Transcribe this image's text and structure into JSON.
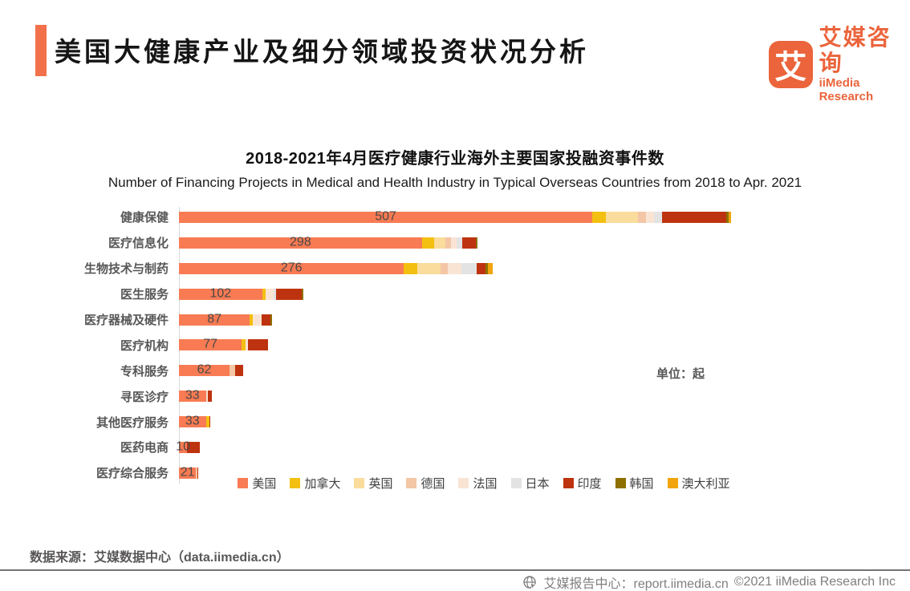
{
  "header": {
    "title": "美国大健康产业及细分领域投资状况分析",
    "logo_char": "艾",
    "brand_cn": "艾媒咨询",
    "brand_en": "iiMedia Research",
    "accent_color": "#F2714A",
    "brand_color": "#EB643B"
  },
  "chart_data": {
    "type": "bar",
    "orientation": "horizontal",
    "stacked": true,
    "grid": false,
    "legend_position": "bottom",
    "title": "2018-2021年4月医疗健康行业海外主要国家投融资事件数",
    "subtitle": "Number of Financing Projects in Medical and Health Industry in Typical Overseas Countries from  2018 to Apr. 2021",
    "unit_label": "单位：起",
    "xlim": [
      0,
      700
    ],
    "categories": [
      "健康保健",
      "医疗信息化",
      "生物技术与制药",
      "医生服务",
      "医疗器械及硬件",
      "医疗机构",
      "专科服务",
      "寻医诊疗",
      "其他医疗服务",
      "医药电商",
      "医疗综合服务"
    ],
    "value_labels": [
      507,
      298,
      276,
      102,
      87,
      77,
      62,
      33,
      33,
      10,
      21
    ],
    "series": [
      {
        "name": "美国",
        "color": "#F87B53",
        "values": [
          507,
          298,
          276,
          102,
          87,
          77,
          62,
          33,
          33,
          10,
          21
        ]
      },
      {
        "name": "加拿大",
        "color": "#F3C011",
        "values": [
          17,
          15,
          16,
          4,
          4,
          5,
          0,
          0,
          4,
          0,
          0
        ]
      },
      {
        "name": "英国",
        "color": "#FADC9C",
        "values": [
          39,
          14,
          29,
          0,
          0,
          0,
          0,
          0,
          0,
          0,
          0
        ]
      },
      {
        "name": "德国",
        "color": "#F3C6A5",
        "values": [
          10,
          7,
          9,
          0,
          0,
          0,
          7,
          0,
          0,
          0,
          2
        ]
      },
      {
        "name": "法国",
        "color": "#F9E4D4",
        "values": [
          10,
          7,
          16,
          10,
          10,
          3,
          0,
          2,
          0,
          0,
          0
        ]
      },
      {
        "name": "日本",
        "color": "#E3E3E3",
        "values": [
          10,
          6,
          19,
          3,
          0,
          0,
          0,
          0,
          0,
          0,
          0
        ]
      },
      {
        "name": "印度",
        "color": "#BE330F",
        "values": [
          78,
          17,
          11,
          32,
          11,
          24,
          10,
          5,
          1,
          16,
          1
        ]
      },
      {
        "name": "韩国",
        "color": "#8E7000",
        "values": [
          3,
          2,
          3,
          2,
          2,
          0,
          0,
          0,
          0,
          0,
          0
        ]
      },
      {
        "name": "澳大利亚",
        "color": "#F2A40E",
        "values": [
          3,
          0,
          6,
          0,
          0,
          0,
          0,
          0,
          0,
          0,
          0
        ]
      }
    ]
  },
  "footer": {
    "source": "数据来源：艾媒数据中心（data.iimedia.cn）",
    "report_center": "艾媒报告中心：report.iimedia.cn",
    "copyright": "©2021  iiMedia Research Inc"
  }
}
